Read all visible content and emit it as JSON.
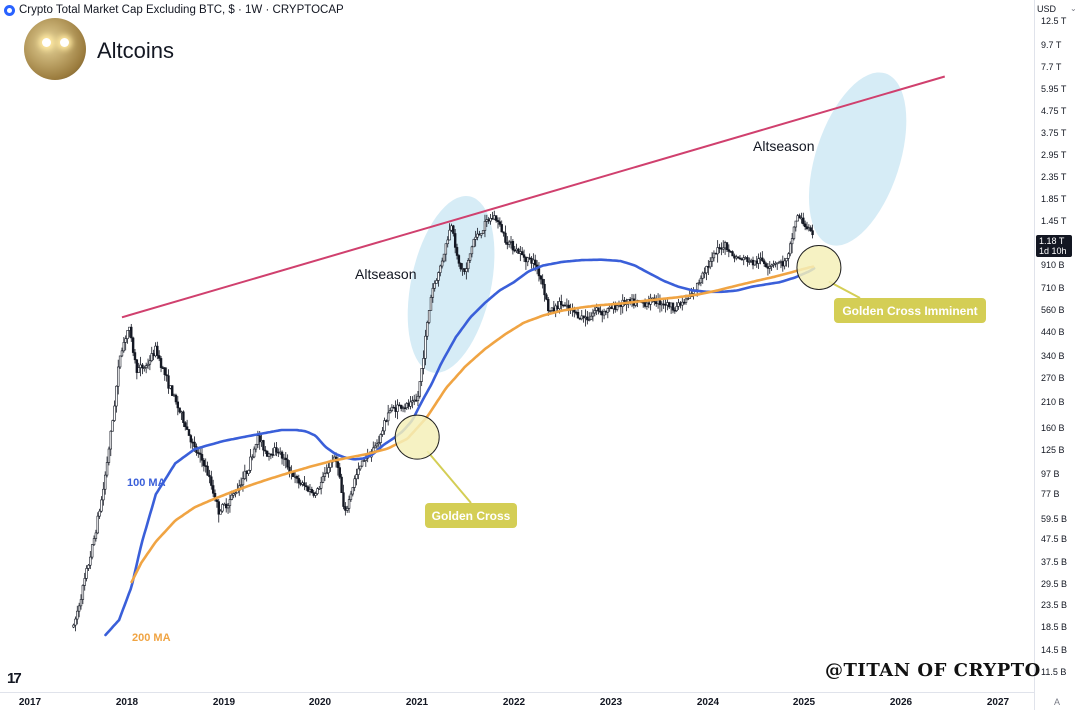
{
  "header": {
    "symbol_title": "Crypto Total Market Cap Excluding BTC, $ · 1W · CRYPTOCAP"
  },
  "brand": {
    "name": "Altcoins"
  },
  "price_axis": {
    "currency": "USD",
    "current_price": "1.18 T",
    "countdown": "1d 10h",
    "ticks": [
      "12.5 T",
      "9.7 T",
      "7.7 T",
      "5.95 T",
      "4.75 T",
      "3.75 T",
      "2.95 T",
      "2.35 T",
      "1.85 T",
      "1.45 T",
      "910 B",
      "710 B",
      "560 B",
      "440 B",
      "340 B",
      "270 B",
      "210 B",
      "160 B",
      "125 B",
      "97 B",
      "77 B",
      "59.5 B",
      "47.5 B",
      "37.5 B",
      "29.5 B",
      "23.5 B",
      "18.5 B",
      "14.5 B",
      "11.5 B"
    ]
  },
  "time_axis": {
    "ticks": [
      "2017",
      "2018",
      "2019",
      "2020",
      "2021",
      "2022",
      "2023",
      "2024",
      "2025",
      "2026",
      "2027"
    ],
    "corner": "A"
  },
  "annotations": {
    "altseason_2021": "Altseason",
    "altseason_future": "Altseason",
    "ma100_label": "100 MA",
    "ma200_label": "200 MA",
    "golden_cross": "Golden Cross",
    "golden_cross_imminent": "Golden Cross Imminent"
  },
  "watermark": "@TITAN OF CRYPTO",
  "colors": {
    "candle": "#131722",
    "ma100": "#3a5fd9",
    "ma200": "#f0a443",
    "trendline": "#d0406e",
    "altseason_ellipse": "#cfe9f5",
    "callout": "#d4ce55",
    "callout_circle_fill": "#f4f0b8"
  },
  "chart_data": {
    "type": "line",
    "title": "Crypto Total Market Cap Excluding BTC",
    "interval": "1W",
    "y_scale": "log",
    "ylim": [
      10,
      13000
    ],
    "y_unit": "B USD",
    "xlim": [
      2017.0,
      2027.1
    ],
    "series": [
      {
        "name": "Price",
        "x": [
          2017.45,
          2017.55,
          2017.65,
          2017.75,
          2017.85,
          2017.93,
          2018.02,
          2018.1,
          2018.2,
          2018.3,
          2018.4,
          2018.5,
          2018.6,
          2018.7,
          2018.8,
          2018.88,
          2018.95,
          2019.05,
          2019.15,
          2019.25,
          2019.35,
          2019.45,
          2019.55,
          2019.65,
          2019.75,
          2019.85,
          2019.95,
          2020.05,
          2020.12,
          2020.18,
          2020.25,
          2020.35,
          2020.45,
          2020.55,
          2020.62,
          2020.7,
          2020.8,
          2020.9,
          2021.0,
          2021.05,
          2021.1,
          2021.15,
          2021.22,
          2021.3,
          2021.36,
          2021.42,
          2021.5,
          2021.58,
          2021.65,
          2021.72,
          2021.8,
          2021.86,
          2021.92,
          2022.0,
          2022.08,
          2022.15,
          2022.22,
          2022.3,
          2022.36,
          2022.42,
          2022.48,
          2022.55,
          2022.62,
          2022.7,
          2022.78,
          2022.85,
          2022.92,
          2023.0,
          2023.08,
          2023.15,
          2023.25,
          2023.35,
          2023.45,
          2023.55,
          2023.65,
          2023.75,
          2023.82,
          2023.9,
          2023.95,
          2024.02,
          2024.1,
          2024.18,
          2024.25,
          2024.32,
          2024.4,
          2024.48,
          2024.55,
          2024.62,
          2024.7,
          2024.78,
          2024.83,
          2024.88,
          2024.92,
          2024.96,
          2025.0,
          2025.05,
          2025.1
        ],
        "y": [
          11,
          18,
          30,
          55,
          130,
          300,
          420,
          250,
          260,
          320,
          230,
          170,
          130,
          95,
          80,
          60,
          45,
          50,
          60,
          75,
          110,
          90,
          95,
          80,
          65,
          60,
          55,
          70,
          85,
          80,
          42,
          65,
          85,
          95,
          110,
          150,
          160,
          160,
          170,
          260,
          420,
          650,
          800,
          1150,
          1500,
          900,
          800,
          1200,
          1300,
          1500,
          1600,
          1400,
          1200,
          1100,
          1000,
          950,
          900,
          700,
          500,
          520,
          560,
          520,
          500,
          470,
          470,
          520,
          500,
          520,
          550,
          560,
          560,
          560,
          580,
          560,
          530,
          560,
          600,
          700,
          820,
          900,
          1050,
          1150,
          1000,
          950,
          950,
          900,
          950,
          880,
          920,
          900,
          950,
          1300,
          1600,
          1550,
          1450,
          1350,
          1180
        ]
      },
      {
        "name": "100 MA",
        "x": [
          2017.78,
          2017.92,
          2018.05,
          2018.15,
          2018.3,
          2018.5,
          2018.7,
          2018.85,
          2019.0,
          2019.2,
          2019.4,
          2019.6,
          2019.75,
          2019.85,
          2019.95,
          2020.05,
          2020.15,
          2020.25,
          2020.35,
          2020.45,
          2020.55,
          2020.65,
          2020.75,
          2020.85,
          2020.95,
          2021.05,
          2021.15,
          2021.25,
          2021.4,
          2021.55,
          2021.7,
          2021.85,
          2022.0,
          2022.15,
          2022.3,
          2022.5,
          2022.7,
          2022.9,
          2023.1,
          2023.25,
          2023.4,
          2023.55,
          2023.7,
          2023.85,
          2024.0,
          2024.15,
          2024.3,
          2024.45,
          2024.6,
          2024.75,
          2024.9,
          2025.05,
          2025.1
        ],
        "y": [
          10,
          12,
          18,
          30,
          55,
          80,
          95,
          100,
          105,
          110,
          115,
          120,
          120,
          118,
          112,
          98,
          90,
          86,
          84,
          85,
          90,
          100,
          108,
          118,
          135,
          170,
          210,
          270,
          370,
          470,
          560,
          650,
          720,
          820,
          880,
          920,
          940,
          945,
          930,
          880,
          800,
          730,
          680,
          650,
          640,
          640,
          650,
          680,
          700,
          720,
          760,
          820,
          850
        ]
      },
      {
        "name": "200 MA",
        "x": [
          2018.05,
          2018.15,
          2018.3,
          2018.5,
          2018.7,
          2018.9,
          2019.1,
          2019.3,
          2019.5,
          2019.7,
          2019.9,
          2020.1,
          2020.3,
          2020.5,
          2020.7,
          2020.9,
          2021.1,
          2021.3,
          2021.5,
          2021.7,
          2021.9,
          2022.1,
          2022.3,
          2022.5,
          2022.7,
          2022.9,
          2023.1,
          2023.3,
          2023.5,
          2023.7,
          2023.9,
          2024.1,
          2024.3,
          2024.5,
          2024.7,
          2024.9,
          2025.05,
          2025.1
        ],
        "y": [
          19,
          24,
          31,
          40,
          47,
          52,
          57,
          62,
          67,
          72,
          77,
          82,
          86,
          90,
          96,
          108,
          140,
          200,
          260,
          320,
          380,
          440,
          480,
          510,
          530,
          545,
          555,
          570,
          585,
          600,
          620,
          650,
          690,
          730,
          770,
          820,
          860,
          870
        ]
      },
      {
        "name": "Resistance trendline",
        "x": [
          2017.95,
          2026.45
        ],
        "y": [
          470,
          8700
        ]
      }
    ],
    "highlights": [
      {
        "label": "Altseason",
        "center_x": 2021.35,
        "center_y": 700
      },
      {
        "label": "Altseason",
        "center_x": 2025.55,
        "center_y": 3200
      },
      {
        "label": "Golden Cross",
        "x": 2021.0,
        "y": 110
      },
      {
        "label": "Golden Cross Imminent",
        "x": 2025.15,
        "y": 860
      }
    ],
    "grid": false,
    "legend": "none"
  }
}
